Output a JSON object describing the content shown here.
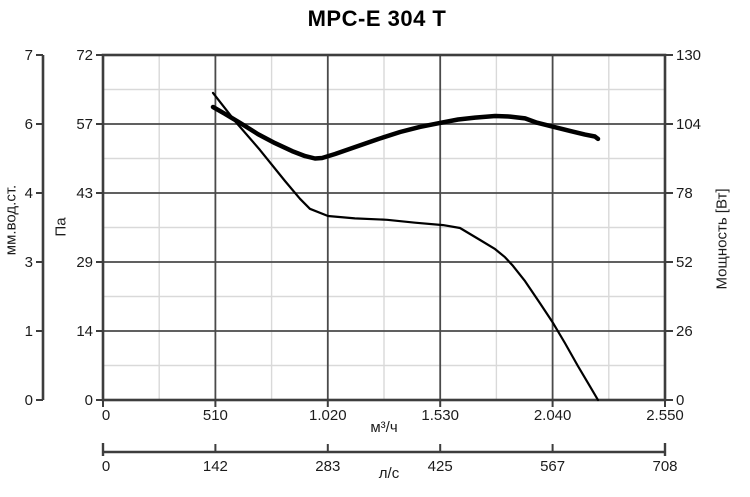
{
  "chart_data": {
    "type": "line",
    "title": "MPC-E 304 T",
    "legend": "none",
    "grid": {
      "major": true,
      "minor": true
    },
    "x_axis": {
      "label": "м³/ч",
      "ticks": [
        "0",
        "510",
        "1.020",
        "1.530",
        "2.040",
        "2.550"
      ],
      "values": [
        0,
        510,
        1020,
        1530,
        2040,
        2550
      ],
      "range": [
        0,
        2550
      ]
    },
    "x_axis_secondary": {
      "label": "л/с",
      "ticks": [
        "0",
        "142",
        "283",
        "425",
        "567",
        "708"
      ],
      "values": [
        0,
        142,
        283,
        425,
        567,
        708
      ],
      "range": [
        0,
        708
      ]
    },
    "y_axis_pa": {
      "label": "Па",
      "ticks": [
        "72",
        "57",
        "43",
        "29",
        "14",
        "0"
      ],
      "values": [
        72,
        57,
        43,
        29,
        14,
        0
      ],
      "range": [
        0,
        72
      ]
    },
    "y_axis_mm": {
      "label": "мм.вод.ст.",
      "ticks": [
        "7",
        "6",
        "4",
        "3",
        "1",
        "0"
      ],
      "values": [
        7,
        6,
        4,
        3,
        1,
        0
      ],
      "range": [
        0,
        7.3
      ]
    },
    "y_axis_power": {
      "label": "Мощность [Вт]",
      "ticks": [
        "130",
        "104",
        "78",
        "52",
        "26",
        "0"
      ],
      "values": [
        130,
        104,
        78,
        52,
        26,
        0
      ],
      "range": [
        0,
        130
      ]
    },
    "series": [
      {
        "name": "static-pressure",
        "unit": "Па",
        "axis": "pa",
        "line_width": 2.2,
        "points": [
          [
            499,
            64.1
          ],
          [
            599,
            58.2
          ],
          [
            712,
            52.2
          ],
          [
            826,
            45.7
          ],
          [
            894,
            42.0
          ],
          [
            939,
            39.9
          ],
          [
            1021,
            38.4
          ],
          [
            1143,
            37.9
          ],
          [
            1289,
            37.6
          ],
          [
            1416,
            37.0
          ],
          [
            1543,
            36.5
          ],
          [
            1620,
            35.9
          ],
          [
            1711,
            33.4
          ],
          [
            1779,
            31.5
          ],
          [
            1824,
            29.8
          ],
          [
            1860,
            28.0
          ],
          [
            1915,
            24.8
          ],
          [
            1983,
            20.2
          ],
          [
            2042,
            16.1
          ],
          [
            2096,
            11.9
          ],
          [
            2155,
            7.1
          ],
          [
            2201,
            3.5
          ],
          [
            2246,
            0
          ]
        ]
      },
      {
        "name": "power",
        "unit": "Вт",
        "axis": "power",
        "line_width": 4.5,
        "points": [
          [
            499,
            110.4
          ],
          [
            554,
            107.8
          ],
          [
            622,
            104.4
          ],
          [
            703,
            100.2
          ],
          [
            780,
            96.8
          ],
          [
            858,
            93.8
          ],
          [
            917,
            91.9
          ],
          [
            962,
            91.0
          ],
          [
            994,
            91.2
          ],
          [
            1053,
            92.7
          ],
          [
            1143,
            95.3
          ],
          [
            1248,
            98.3
          ],
          [
            1348,
            101.0
          ],
          [
            1438,
            102.9
          ],
          [
            1529,
            104.4
          ],
          [
            1611,
            105.7
          ],
          [
            1688,
            106.4
          ],
          [
            1779,
            107.0
          ],
          [
            1847,
            106.8
          ],
          [
            1915,
            106.1
          ],
          [
            1969,
            104.5
          ],
          [
            2046,
            102.9
          ],
          [
            2119,
            101.4
          ],
          [
            2187,
            100.0
          ],
          [
            2232,
            99.3
          ],
          [
            2246,
            98.4
          ]
        ]
      }
    ]
  },
  "colors": {
    "curve": "#000000",
    "grid_major": "#4a4a4a",
    "grid_minor": "#d9d9d9",
    "border": "#3d3d3d",
    "text": "#1c1c1c",
    "background": "#ffffff"
  }
}
